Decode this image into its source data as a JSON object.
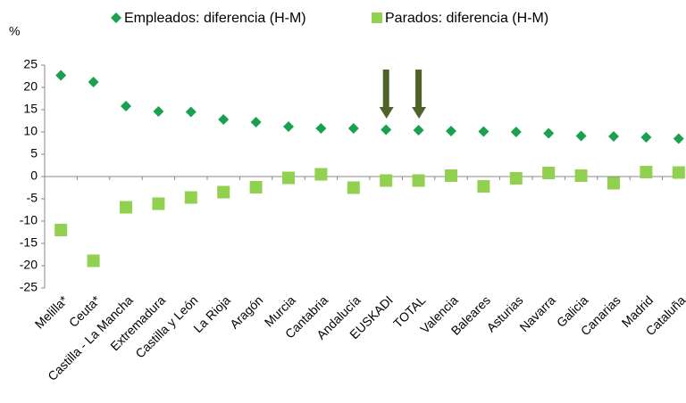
{
  "chart_data": {
    "type": "scatter",
    "ylabel": "%",
    "categories": [
      "Melilla*",
      "Ceuta*",
      "Castilla - La Mancha",
      "Extremadura",
      "Castilla y León",
      "La Rioja",
      "Aragón",
      "Murcia",
      "Cantabria",
      "Andalucía",
      "EUSKADI",
      "TOTAL",
      "Valencia",
      "Baleares",
      "Asturias",
      "Navarra",
      "Galicia",
      "Canarias",
      "Madrid",
      "Cataluña"
    ],
    "series": [
      {
        "name": "Empleados: diferencia (H-M)",
        "color": "#1aa150",
        "marker": "diamond",
        "values": [
          22.7,
          21.2,
          15.8,
          14.6,
          14.5,
          12.8,
          12.2,
          11.2,
          10.8,
          10.8,
          10.5,
          10.4,
          10.2,
          10.1,
          10.0,
          9.7,
          9.1,
          9.0,
          8.8,
          8.5
        ]
      },
      {
        "name": "Parados: diferencia (H-M)",
        "color": "#92d050",
        "marker": "square",
        "values": [
          -12.0,
          -18.9,
          -6.9,
          -6.1,
          -4.7,
          -3.5,
          -2.4,
          -0.3,
          0.5,
          -2.5,
          -0.9,
          -0.9,
          0.2,
          -2.2,
          -0.4,
          0.8,
          0.2,
          -1.5,
          1.0,
          0.9
        ]
      }
    ],
    "ylim": [
      -25,
      25
    ],
    "yticks": [
      25,
      20,
      15,
      10,
      5,
      0,
      -5,
      -10,
      -15,
      -20,
      -25
    ],
    "grid": false,
    "legend": "top"
  }
}
